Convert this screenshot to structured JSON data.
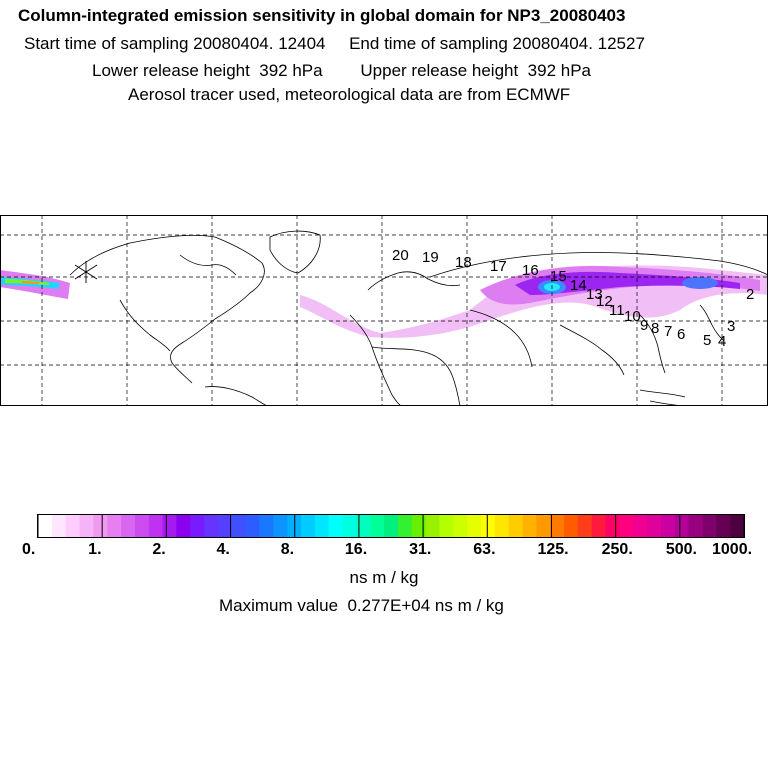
{
  "header": {
    "title": "Column-integrated emission sensitivity in global domain for NP3_20080403",
    "line2": "Start time of sampling 20080404. 12404     End time of sampling 20080404. 12527",
    "line3": "Lower release height  392 hPa        Upper release height  392 hPa",
    "line4": "Aerosol tracer used, meteorological data are from ECMWF"
  },
  "map": {
    "trajectory_labels": [
      "2",
      "3",
      "4",
      "5",
      "6",
      "7",
      "8",
      "9",
      "10",
      "11",
      "12",
      "13",
      "14",
      "15",
      "16",
      "17",
      "18",
      "19",
      "20"
    ]
  },
  "colorbar": {
    "tick_labels": [
      "0.",
      "1.",
      "2.",
      "4.",
      "8.",
      "16.",
      "31.",
      "63.",
      "125.",
      "250.",
      "500.",
      "1000."
    ],
    "colors": [
      "#ffffff",
      "#ffe6ff",
      "#ffccff",
      "#f7b3f7",
      "#ef99ef",
      "#e680f0",
      "#d966f0",
      "#cc4cf0",
      "#bf33f0",
      "#a61af0",
      "#8c00f0",
      "#7a1aff",
      "#6633ff",
      "#5540ff",
      "#4050ff",
      "#2d5cff",
      "#1a78ff",
      "#0d94ff",
      "#00b0ff",
      "#00ccff",
      "#00e6ff",
      "#00ffff",
      "#00ffe0",
      "#00ffbf",
      "#00ff99",
      "#00f080",
      "#33f030",
      "#66f000",
      "#99f000",
      "#b3ff00",
      "#ccff00",
      "#e6ff00",
      "#ffff00",
      "#ffe600",
      "#ffcc00",
      "#ffb300",
      "#ff9900",
      "#ff7a00",
      "#ff5c00",
      "#ff3d1a",
      "#ff1a3d",
      "#ff0066",
      "#ff0080",
      "#f00090",
      "#e0009a",
      "#cc00a0",
      "#b30099",
      "#990080",
      "#80006b",
      "#660055",
      "#4d0040"
    ],
    "units": "ns m / kg"
  },
  "maximum_value": "Maximum value  0.277E+04 ns m / kg"
}
